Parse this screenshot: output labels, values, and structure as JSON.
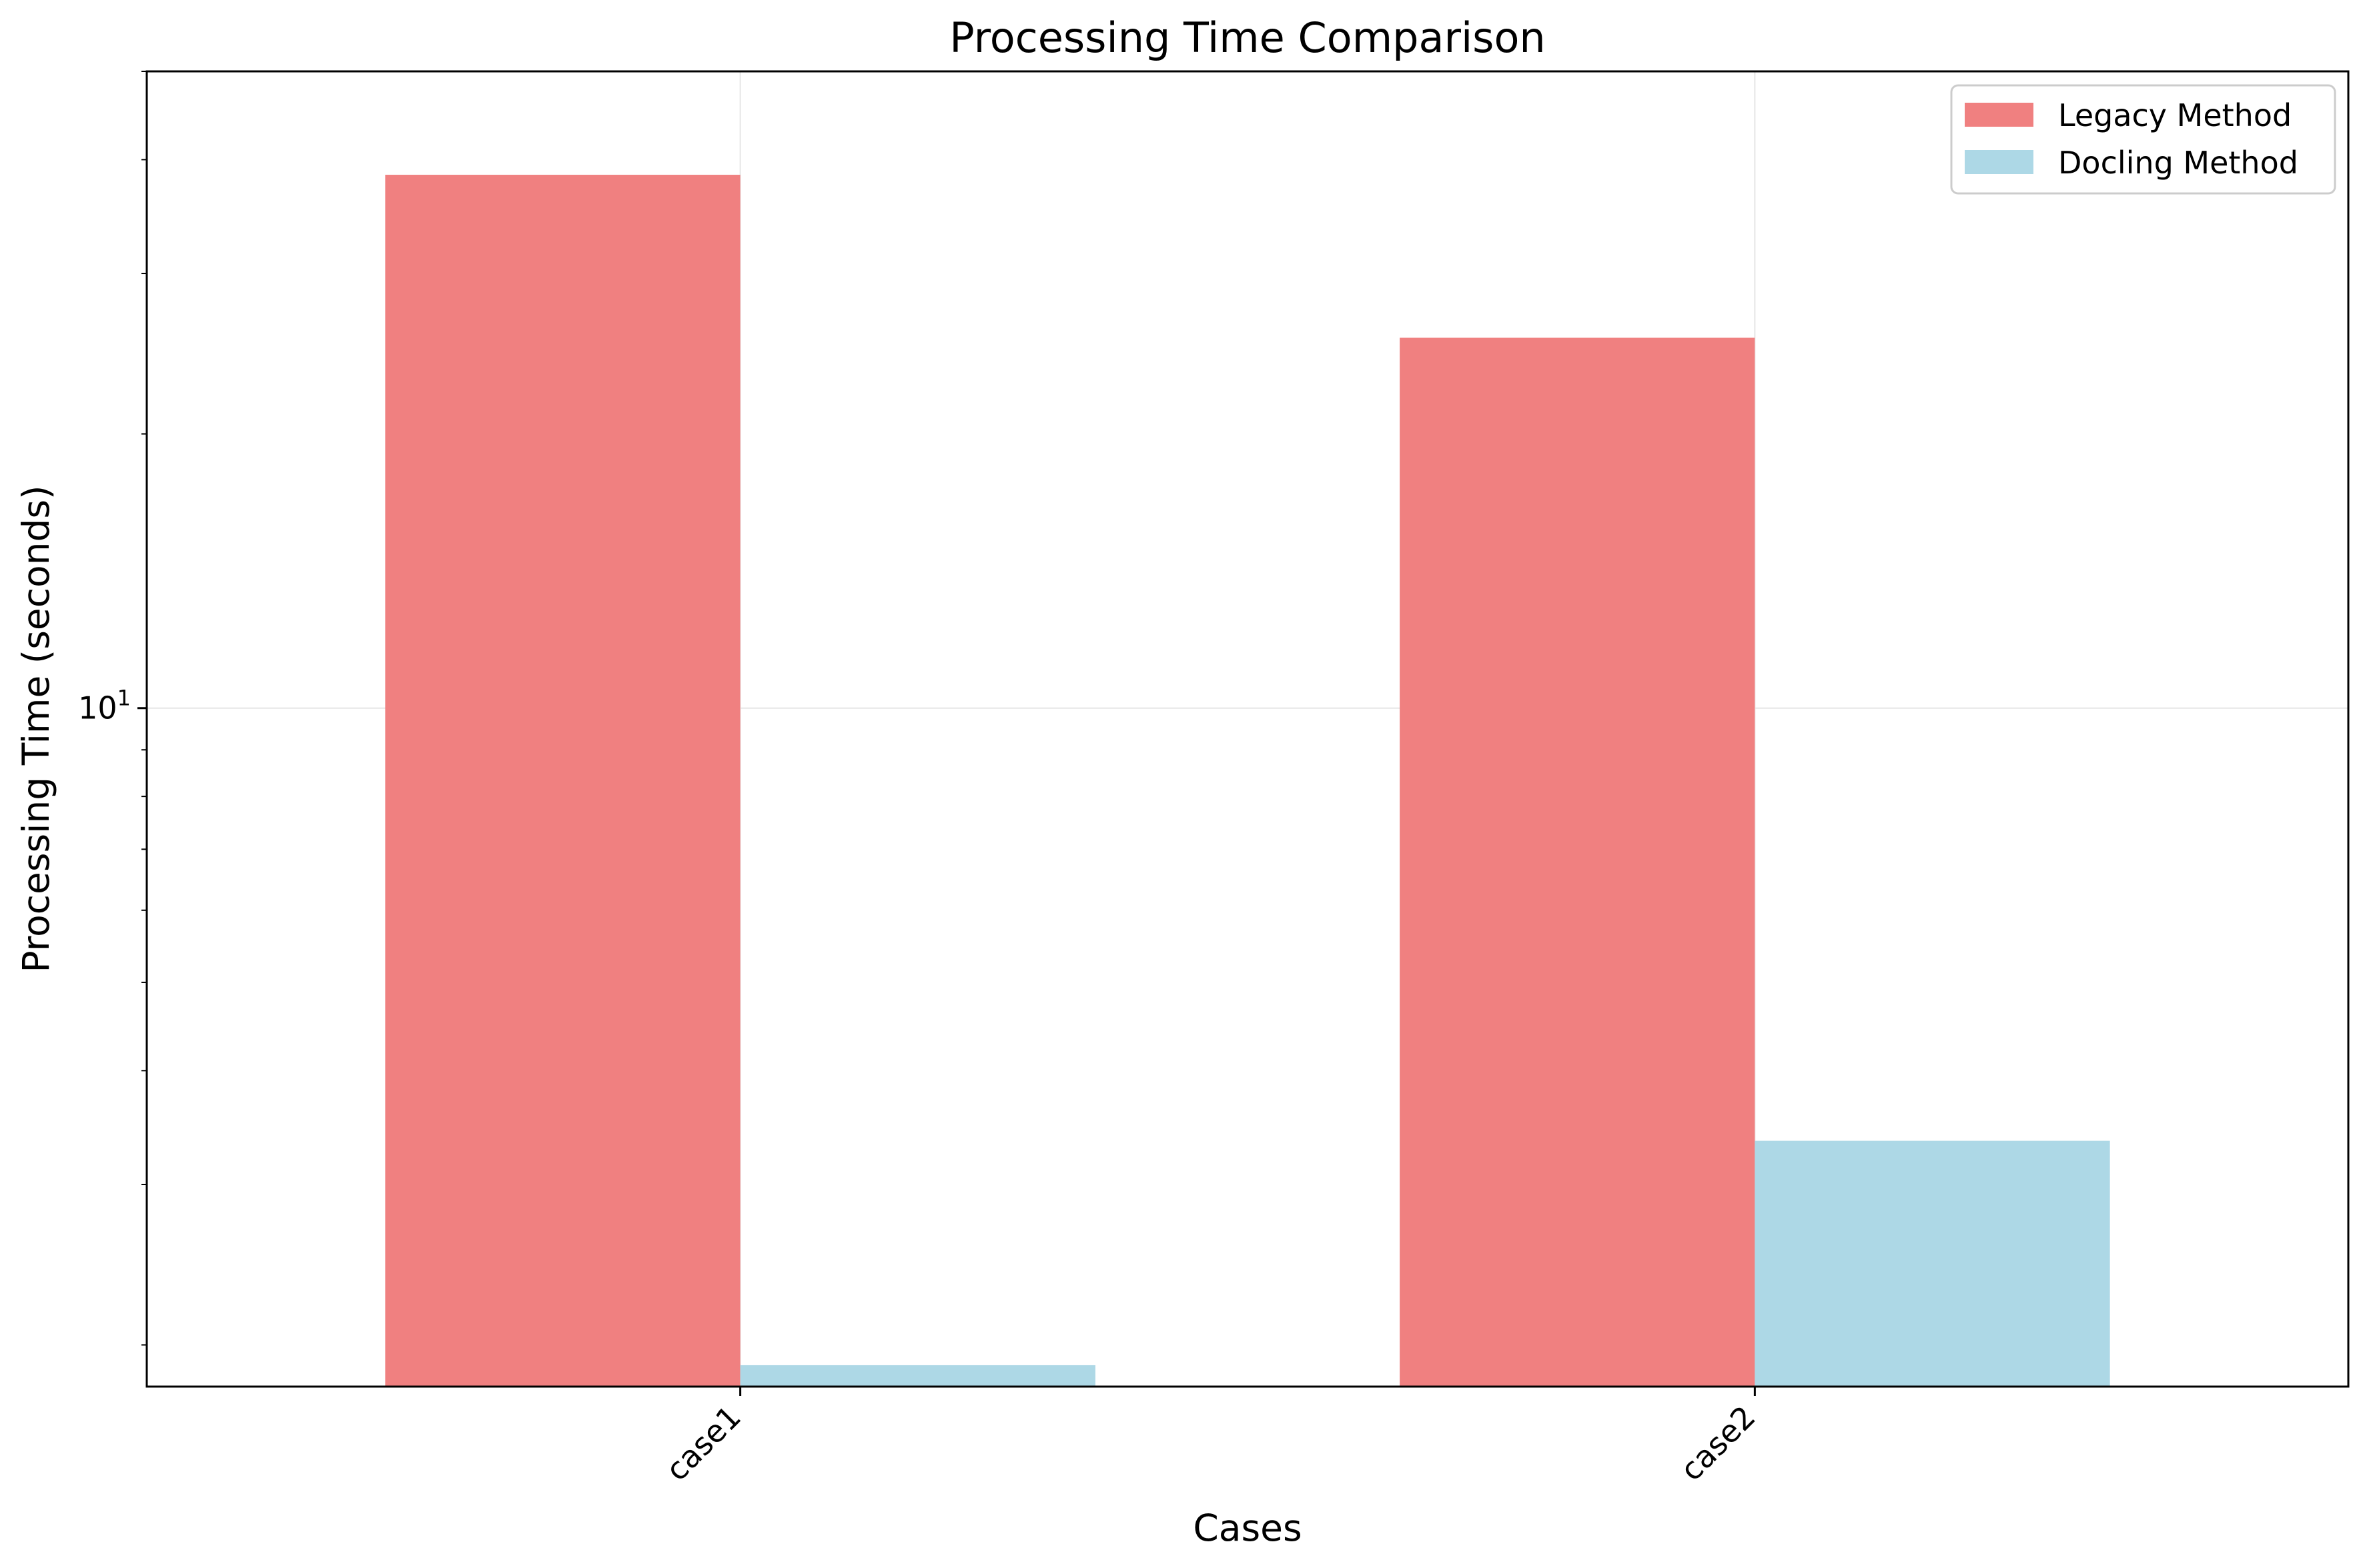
{
  "chart_data": {
    "type": "bar",
    "title": "Processing Time Comparison",
    "xlabel": "Cases",
    "ylabel": "Processing Time (seconds)",
    "yscale": "log",
    "ylim": [
      1.8,
      50
    ],
    "categories": [
      "case1",
      "case2"
    ],
    "series": [
      {
        "name": "Legacy Method",
        "color": "#f08080",
        "values": [
          38.5,
          25.5
        ]
      },
      {
        "name": "Docling Method",
        "color": "#add8e6",
        "values": [
          1.9,
          3.35
        ]
      }
    ],
    "y_tick_labels": [
      {
        "value": 10,
        "base": "10",
        "exp": "1"
      }
    ],
    "grid": true,
    "legend": "top-right"
  }
}
